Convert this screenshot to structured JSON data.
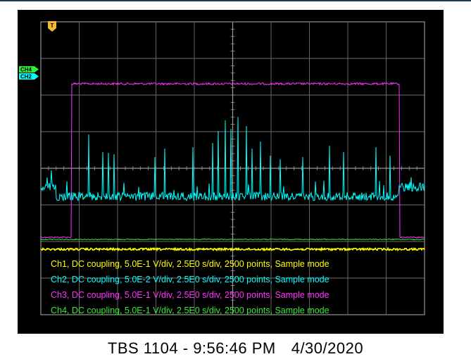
{
  "footer": {
    "model": "TBS 1104",
    "separator": " - ",
    "time": "9:56:46 PM",
    "date": "4/30/2020"
  },
  "scope": {
    "divisions": {
      "horizontal": 10,
      "vertical": 8
    },
    "colors": {
      "grid": "#6f6f6f",
      "ch1": "#ffff00",
      "ch2": "#00ffff",
      "ch3": "#ff33ff",
      "ch4": "#33ee33",
      "trigger_marker": "#f2b733",
      "frame": "#b0b0b0"
    },
    "trigger_marker": {
      "label": "T",
      "icon": "trigger-position-icon"
    },
    "channel_markers": [
      {
        "label": "CH4",
        "color": "#33ee33"
      },
      {
        "label": "CH2",
        "color": "#00ffff"
      }
    ],
    "legend": [
      {
        "channel": "Ch1",
        "text": "Ch1, DC coupling, 5.0E-1 V/div, 2.5E0 s/div, 2500 points, Sample mode",
        "color": "#ffff00"
      },
      {
        "channel": "Ch2",
        "text": "Ch2, DC coupling, 5.0E-2 V/div, 2.5E0 s/div, 2500 points, Sample mode",
        "color": "#00ffff"
      },
      {
        "channel": "Ch3",
        "text": "Ch3, DC coupling, 5.0E-1 V/div, 2.5E0 s/div, 2500 points, Sample mode",
        "color": "#ff33ff"
      },
      {
        "channel": "Ch4",
        "text": "Ch4, DC coupling, 5.0E-1 V/div, 2.5E0 s/div, 2500 points, Sample mode",
        "color": "#33ee33"
      }
    ]
  }
}
